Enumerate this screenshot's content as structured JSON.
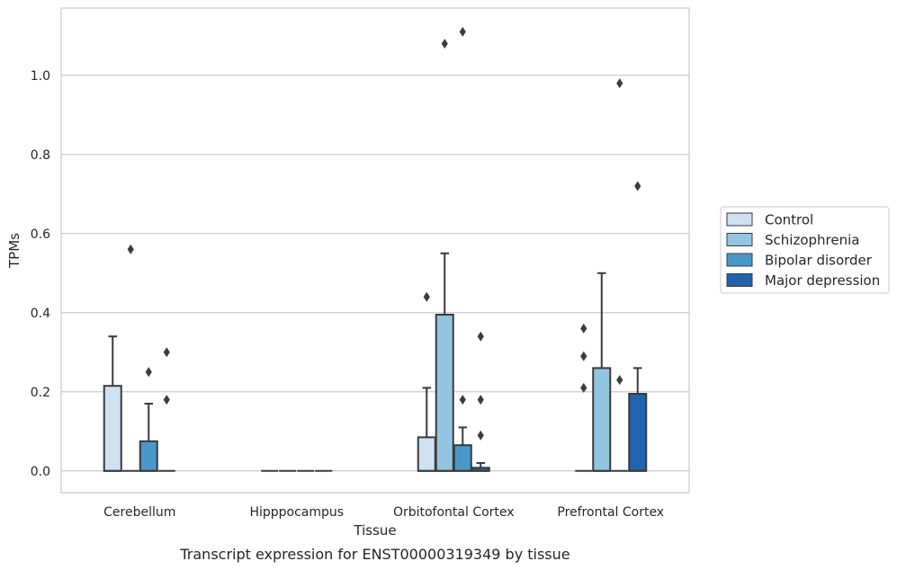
{
  "caption": "Transcript expression for ENST00000319349 by tissue",
  "chart_data": {
    "type": "bar",
    "subtype": "box",
    "xlabel": "Tissue",
    "ylabel": "TPMs",
    "ylim": [
      -0.055,
      1.17
    ],
    "yticks": [
      "0.0",
      "0.2",
      "0.4",
      "0.6",
      "0.8",
      "1.0"
    ],
    "grid": "horizontal",
    "legend_position": "right",
    "categories": [
      "Cerebellum",
      "Hipppocampus",
      "Orbitofontal Cortex",
      "Prefrontal Cortex"
    ],
    "series": [
      {
        "name": "Control",
        "color": "#d0e1f2",
        "boxes": [
          {
            "q1": 0,
            "q3": 0.215,
            "median": 0,
            "whisker_low": 0,
            "whisker_high": 0.34,
            "outliers": []
          },
          {
            "q1": 0,
            "q3": 0,
            "median": 0,
            "whisker_low": 0,
            "whisker_high": 0,
            "outliers": []
          },
          {
            "q1": 0,
            "q3": 0.085,
            "median": 0,
            "whisker_low": 0,
            "whisker_high": 0.21,
            "outliers": [
              0.44
            ]
          },
          {
            "q1": 0,
            "q3": 0,
            "median": 0,
            "whisker_low": 0,
            "whisker_high": 0,
            "outliers": [
              0.21,
              0.29,
              0.36
            ]
          }
        ]
      },
      {
        "name": "Schizophrenia",
        "color": "#94c4df",
        "boxes": [
          {
            "q1": 0,
            "q3": 0,
            "median": 0,
            "whisker_low": 0,
            "whisker_high": 0,
            "outliers": [
              0.56
            ]
          },
          {
            "q1": 0,
            "q3": 0,
            "median": 0,
            "whisker_low": 0,
            "whisker_high": 0,
            "outliers": []
          },
          {
            "q1": 0,
            "q3": 0.395,
            "median": 0,
            "whisker_low": 0,
            "whisker_high": 0.55,
            "outliers": [
              1.08
            ]
          },
          {
            "q1": 0,
            "q3": 0.26,
            "median": 0,
            "whisker_low": 0,
            "whisker_high": 0.5,
            "outliers": []
          }
        ]
      },
      {
        "name": "Bipolar disorder",
        "color": "#4a98c9",
        "boxes": [
          {
            "q1": 0,
            "q3": 0.075,
            "median": 0,
            "whisker_low": 0,
            "whisker_high": 0.17,
            "outliers": [
              0.25
            ]
          },
          {
            "q1": 0,
            "q3": 0,
            "median": 0,
            "whisker_low": 0,
            "whisker_high": 0,
            "outliers": []
          },
          {
            "q1": 0,
            "q3": 0.065,
            "median": 0,
            "whisker_low": 0,
            "whisker_high": 0.11,
            "outliers": [
              0.18,
              1.11
            ]
          },
          {
            "q1": 0,
            "q3": 0,
            "median": 0,
            "whisker_low": 0,
            "whisker_high": 0,
            "outliers": [
              0.23,
              0.98
            ]
          }
        ]
      },
      {
        "name": "Major depression",
        "color": "#2164ab",
        "boxes": [
          {
            "q1": 0,
            "q3": 0,
            "median": 0,
            "whisker_low": 0,
            "whisker_high": 0,
            "outliers": [
              0.18,
              0.3
            ]
          },
          {
            "q1": 0,
            "q3": 0,
            "median": 0,
            "whisker_low": 0,
            "whisker_high": 0,
            "outliers": []
          },
          {
            "q1": 0,
            "q3": 0.008,
            "median": 0,
            "whisker_low": 0,
            "whisker_high": 0.02,
            "outliers": [
              0.09,
              0.18,
              0.34
            ]
          },
          {
            "q1": 0,
            "q3": 0.195,
            "median": 0,
            "whisker_low": 0,
            "whisker_high": 0.26,
            "outliers": [
              0.72
            ]
          }
        ]
      }
    ]
  },
  "colors": {
    "grid": "#cccccc",
    "frame": "#cccccc",
    "box_edge": "#3a3a3a",
    "text": "#262626"
  }
}
